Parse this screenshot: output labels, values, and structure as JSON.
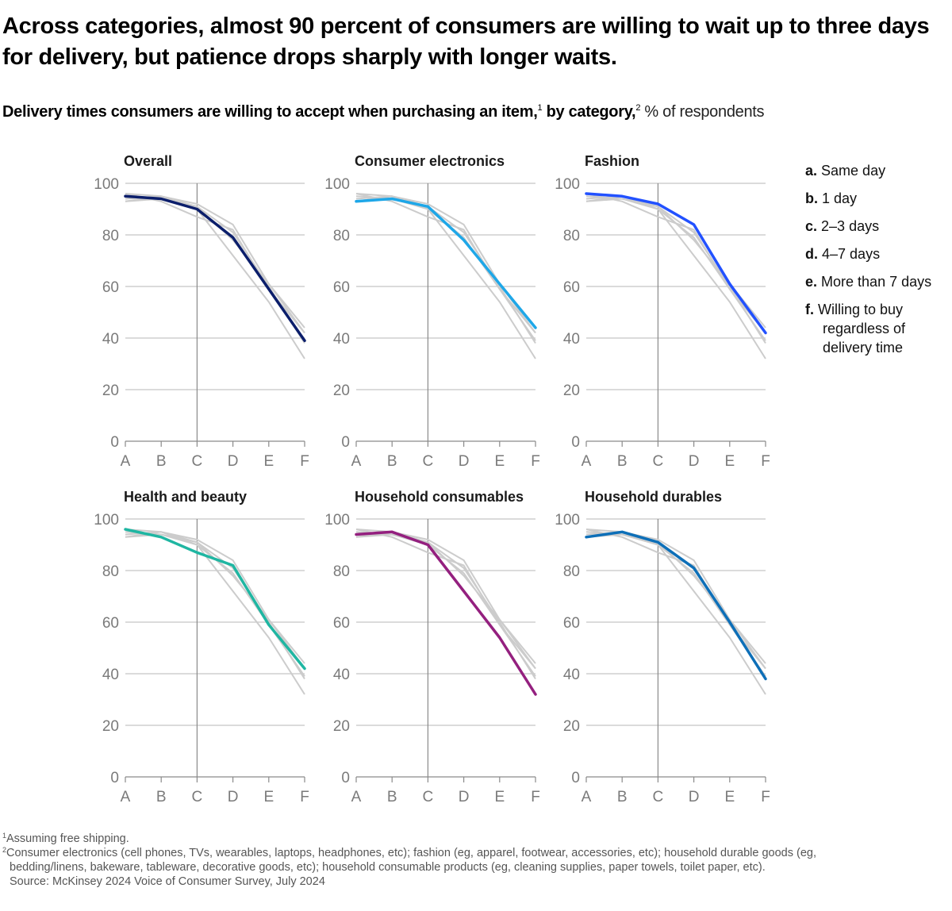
{
  "header": {
    "title": "Across categories, almost 90 percent of consumers are willing to wait up to three days for delivery, but patience drops sharply with longer waits.",
    "subtitle_bold": "Delivery times consumers are willing to accept when purchasing an item,",
    "subtitle_sup1": "1",
    "subtitle_bold2": " by category,",
    "subtitle_sup2": "2",
    "subtitle_unit": " % of respondents"
  },
  "legend": {
    "items": [
      {
        "key": "a.",
        "label": "Same day"
      },
      {
        "key": "b.",
        "label": "1 day"
      },
      {
        "key": "c.",
        "label": "2–3 days"
      },
      {
        "key": "d.",
        "label": "4–7 days"
      },
      {
        "key": "e.",
        "label": "More than 7 days"
      },
      {
        "key": "f.",
        "label": "Willing to buy",
        "label2": "regardless of",
        "label3": "delivery time"
      }
    ]
  },
  "footnotes": {
    "note1_sup": "1",
    "note1": "Assuming free shipping.",
    "note2_sup": "2",
    "note2_line1": "Consumer electronics (cell phones, TVs, wearables, laptops, headphones, etc); fashion (eg, apparel, footwear, accessories, etc); household durable goods (eg,",
    "note2_line2": "bedding/linens, bakeware, tableware, decorative goods, etc); household consumable products (eg, cleaning supplies, paper towels, toilet paper, etc).",
    "source": "Source: McKinsey 2024 Voice of Consumer Survey, July 2024"
  },
  "chart_data": {
    "type": "line",
    "layout": "small-multiples",
    "title": "Delivery times consumers are willing to accept when purchasing an item, by category, % of respondents",
    "x": [
      "A",
      "B",
      "C",
      "D",
      "E",
      "F"
    ],
    "xlabel": "",
    "ylabel": "% of respondents",
    "ylim": [
      0,
      100
    ],
    "yticks": [
      0,
      20,
      40,
      60,
      80,
      100
    ],
    "grid": true,
    "legend_placement": "right",
    "reference_line_x": "C",
    "background_color": "#cccccc",
    "series": [
      {
        "name": "Overall",
        "color": "#0b1e6b",
        "values": [
          95,
          94,
          90,
          79,
          59,
          39
        ]
      },
      {
        "name": "Consumer electronics",
        "color": "#1ea7e8",
        "values": [
          93,
          94,
          91,
          78,
          61,
          44
        ]
      },
      {
        "name": "Fashion",
        "color": "#2251ff",
        "values": [
          96,
          95,
          92,
          84,
          61,
          42
        ]
      },
      {
        "name": "Health and beauty",
        "color": "#1fb6a2",
        "values": [
          96,
          93,
          87,
          82,
          59,
          42
        ]
      },
      {
        "name": "Household consumables",
        "color": "#94207f",
        "values": [
          94,
          95,
          90,
          72,
          54,
          32
        ]
      },
      {
        "name": "Household durables",
        "color": "#0d6fb8",
        "values": [
          93,
          95,
          91,
          81,
          60,
          38
        ]
      }
    ]
  }
}
